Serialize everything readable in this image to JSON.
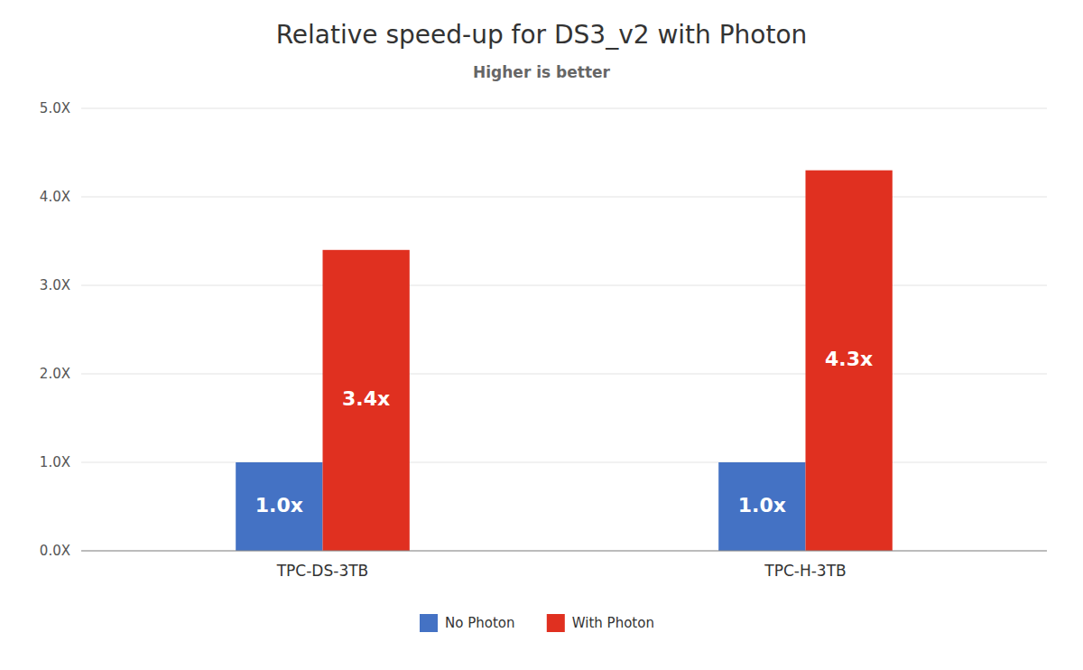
{
  "chart_data": {
    "type": "bar",
    "title": "Relative speed-up for DS3_v2 with Photon",
    "subtitle": "Higher is better",
    "categories": [
      "TPC-DS-3TB",
      "TPC-H-3TB"
    ],
    "series": [
      {
        "name": "No Photon",
        "color": "#4472C4",
        "values": [
          1.0,
          1.0
        ],
        "value_labels": [
          "1.0x",
          "1.0x"
        ]
      },
      {
        "name": "With Photon",
        "color": "#E03020",
        "values": [
          3.4,
          4.3
        ],
        "value_labels": [
          "3.4x",
          "4.3x"
        ]
      }
    ],
    "ylim": [
      0,
      5.0
    ],
    "yticks": [
      {
        "value": 0.0,
        "label": "0.0X"
      },
      {
        "value": 1.0,
        "label": "1.0X"
      },
      {
        "value": 2.0,
        "label": "2.0X"
      },
      {
        "value": 3.0,
        "label": "3.0X"
      },
      {
        "value": 4.0,
        "label": "4.0X"
      },
      {
        "value": 5.0,
        "label": "5.0X"
      }
    ],
    "grid": true,
    "legend": "bottom",
    "data_labels": true
  }
}
